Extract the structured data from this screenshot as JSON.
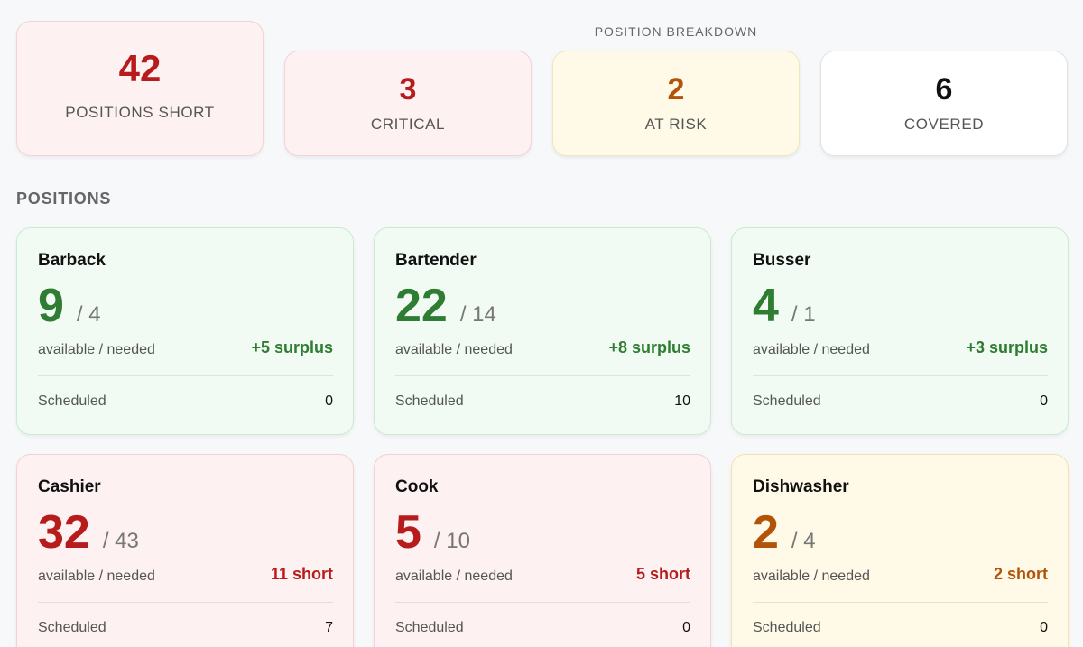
{
  "colors": {
    "critical": "#b71c1c",
    "at_risk": "#b35309",
    "covered": "#111111",
    "surplus": "#2e7d32"
  },
  "summary": {
    "total_short_value": "42",
    "total_short_label": "POSITIONS SHORT"
  },
  "breakdown": {
    "title": "POSITION BREAKDOWN",
    "critical": {
      "value": "3",
      "label": "CRITICAL"
    },
    "at_risk": {
      "value": "2",
      "label": "AT RISK"
    },
    "covered": {
      "value": "6",
      "label": "COVERED"
    }
  },
  "positions_section": {
    "title": "POSITIONS",
    "sub_label": "available / needed",
    "scheduled_label": "Scheduled",
    "cards": [
      {
        "name": "Barback",
        "available": "9",
        "needed": "/ 4",
        "delta": "+5 surplus",
        "scheduled": "0",
        "status": "surplus"
      },
      {
        "name": "Bartender",
        "available": "22",
        "needed": "/ 14",
        "delta": "+8 surplus",
        "scheduled": "10",
        "status": "surplus"
      },
      {
        "name": "Busser",
        "available": "4",
        "needed": "/ 1",
        "delta": "+3 surplus",
        "scheduled": "0",
        "status": "surplus"
      },
      {
        "name": "Cashier",
        "available": "32",
        "needed": "/ 43",
        "delta": "11 short",
        "scheduled": "7",
        "status": "critical"
      },
      {
        "name": "Cook",
        "available": "5",
        "needed": "/ 10",
        "delta": "5 short",
        "scheduled": "0",
        "status": "critical"
      },
      {
        "name": "Dishwasher",
        "available": "2",
        "needed": "/ 4",
        "delta": "2 short",
        "scheduled": "0",
        "status": "at-risk"
      }
    ]
  }
}
